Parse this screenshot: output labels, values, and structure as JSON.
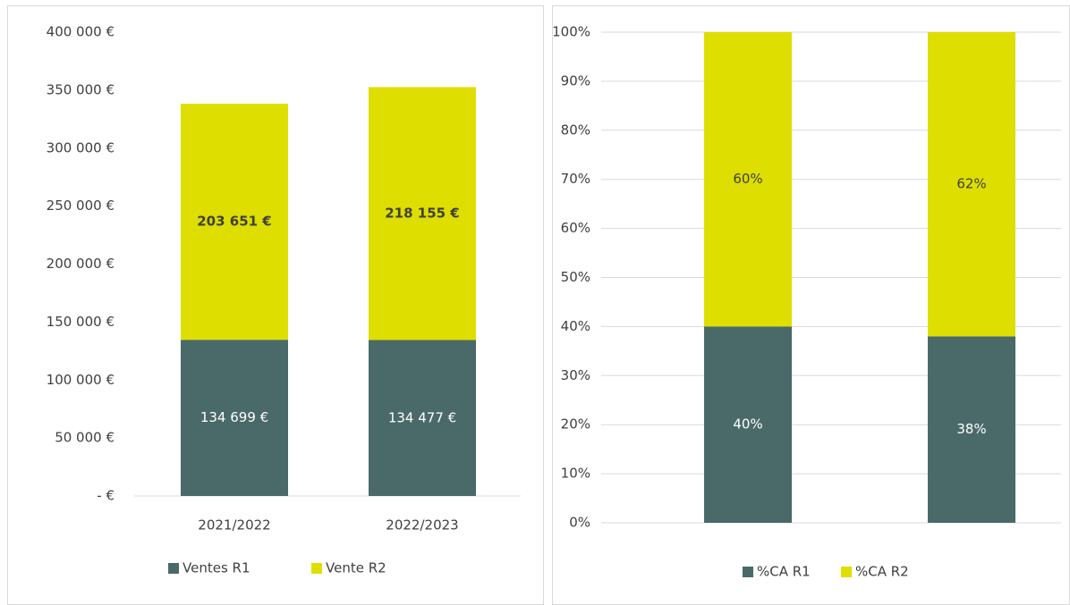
{
  "chart_data": [
    {
      "type": "stacked_bar",
      "categories": [
        "2021/2022",
        "2022/2023"
      ],
      "series": [
        {
          "name": "Ventes R1",
          "color": "#4a6969",
          "values": [
            134699,
            134477
          ],
          "value_labels": [
            "134 699 €",
            "134 477 €"
          ]
        },
        {
          "name": "Vente R2",
          "color": "#dede00",
          "values": [
            203651,
            218155
          ],
          "value_labels": [
            "203 651 €",
            "218 155 €"
          ]
        }
      ],
      "ylim": [
        0,
        400000
      ],
      "yticks": [
        {
          "value": 0,
          "label": "-  €"
        },
        {
          "value": 50000,
          "label": "50 000 €"
        },
        {
          "value": 100000,
          "label": "100 000 €"
        },
        {
          "value": 150000,
          "label": "150 000 €"
        },
        {
          "value": 200000,
          "label": "200 000 €"
        },
        {
          "value": 250000,
          "label": "250 000 €"
        },
        {
          "value": 300000,
          "label": "300 000 €"
        },
        {
          "value": 350000,
          "label": "350 000 €"
        },
        {
          "value": 400000,
          "label": "400 000 €"
        }
      ],
      "grid": false,
      "legend": "bottom"
    },
    {
      "type": "stacked_bar",
      "categories": [
        null,
        null
      ],
      "series": [
        {
          "name": "%CA R1",
          "color": "#4a6969",
          "values": [
            40,
            38
          ],
          "value_labels": [
            "40%",
            "38%"
          ]
        },
        {
          "name": "%CA R2",
          "color": "#dede00",
          "values": [
            60,
            62
          ],
          "value_labels": [
            "60%",
            "62%"
          ]
        }
      ],
      "ylim": [
        0,
        100
      ],
      "yticks": [
        {
          "value": 0,
          "label": "0%"
        },
        {
          "value": 10,
          "label": "10%"
        },
        {
          "value": 20,
          "label": "20%"
        },
        {
          "value": 30,
          "label": "30%"
        },
        {
          "value": 40,
          "label": "40%"
        },
        {
          "value": 50,
          "label": "50%"
        },
        {
          "value": 60,
          "label": "60%"
        },
        {
          "value": 70,
          "label": "70%"
        },
        {
          "value": 80,
          "label": "80%"
        },
        {
          "value": 90,
          "label": "90%"
        },
        {
          "value": 100,
          "label": "100%"
        }
      ],
      "grid": true,
      "legend": "bottom"
    }
  ]
}
